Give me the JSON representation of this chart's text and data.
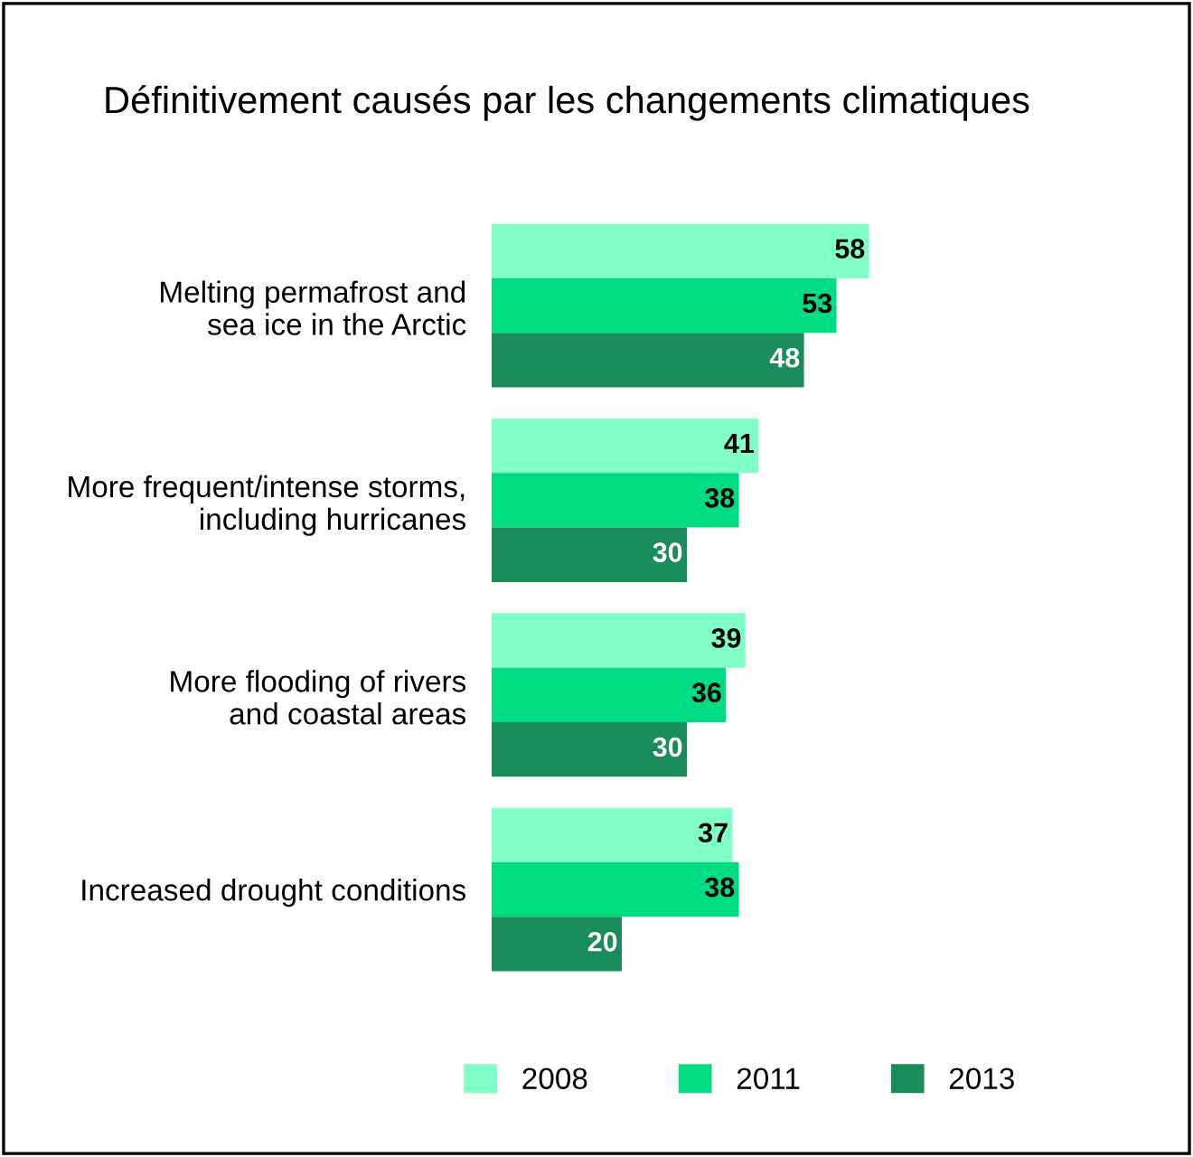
{
  "chart_data": {
    "type": "bar",
    "orientation": "horizontal",
    "title": "Définitivement causés par les changements climatiques",
    "categories": [
      "Melting permafrost and\nsea ice in the Arctic",
      "More frequent/intense storms,\nincluding hurricanes",
      "More flooding of rivers\nand coastal areas",
      "Increased drought conditions"
    ],
    "series": [
      {
        "name": "2008",
        "color": "#80ffc6",
        "values": [
          58,
          41,
          39,
          37
        ]
      },
      {
        "name": "2011",
        "color": "#00dc82",
        "values": [
          53,
          38,
          36,
          38
        ]
      },
      {
        "name": "2013",
        "color": "#1a8c5c",
        "values": [
          48,
          30,
          30,
          20
        ]
      }
    ],
    "data_labels": true,
    "legend": "bottom",
    "grid": false
  }
}
